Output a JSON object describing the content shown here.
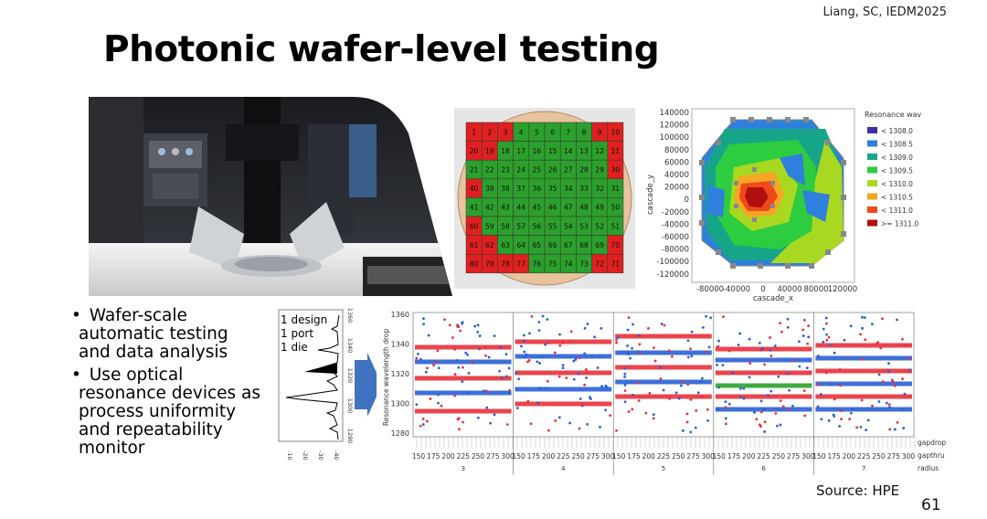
{
  "citation": "Liang, SC, IEDM2025",
  "title": "Photonic wafer-level testing",
  "photo": {
    "label": "system-photo"
  },
  "wafer_map": {
    "rows": [
      {
        "cells": [
          null,
          1,
          2,
          3,
          4,
          5,
          6,
          7,
          8,
          9,
          10,
          null
        ],
        "fail": [
          1,
          2,
          3,
          9,
          10
        ]
      },
      {
        "cells": [
          20,
          19,
          18,
          17,
          16,
          15,
          14,
          13,
          12,
          11
        ],
        "fail": [
          20,
          19,
          11
        ]
      },
      {
        "cells": [
          21,
          22,
          23,
          24,
          25,
          26,
          27,
          28,
          29,
          30
        ],
        "fail": [
          30
        ]
      },
      {
        "cells": [
          40,
          39,
          38,
          37,
          36,
          35,
          34,
          33,
          32,
          31
        ],
        "fail": [
          40
        ]
      },
      {
        "cells": [
          41,
          42,
          43,
          44,
          45,
          46,
          47,
          48,
          49,
          50
        ],
        "fail": []
      },
      {
        "cells": [
          60,
          59,
          58,
          57,
          56,
          55,
          54,
          53,
          52,
          51
        ],
        "fail": [
          60
        ]
      },
      {
        "cells": [
          61,
          62,
          63,
          64,
          65,
          66,
          67,
          68,
          69,
          70
        ],
        "fail": [
          61,
          62,
          70
        ]
      },
      {
        "cells": [
          80,
          79,
          78,
          77,
          76,
          75,
          74,
          73,
          72,
          71
        ],
        "fail": [
          80,
          79,
          78,
          77,
          72,
          71
        ]
      }
    ],
    "colors": {
      "pass": "#2ca02c",
      "fail": "#e02020",
      "wafer": "#e8c39e"
    }
  },
  "contour": {
    "legend_title": "Resonance wave",
    "legend": [
      {
        "label": "< 1308.0",
        "color": "#3a2fa8"
      },
      {
        "label": "< 1308.5",
        "color": "#2f7fdc"
      },
      {
        "label": "< 1309.0",
        "color": "#17a589"
      },
      {
        "label": "< 1309.5",
        "color": "#2ecc40"
      },
      {
        "label": "< 1310.0",
        "color": "#a8d820"
      },
      {
        "label": "< 1310.5",
        "color": "#f5a623"
      },
      {
        "label": "< 1311.0",
        "color": "#f04a1a"
      },
      {
        "label": ">= 1311.0",
        "color": "#b01010"
      }
    ],
    "y_label": "cascade_y",
    "x_label": "cascade_x",
    "y_ticks": [
      "140000",
      "120000",
      "100000",
      "80000",
      "60000",
      "40000",
      "20000",
      "0",
      "-20000",
      "-40000",
      "-60000",
      "-80000",
      "-100000",
      "-120000"
    ],
    "x_ticks": [
      "-80000",
      "-40000",
      "0",
      "40000",
      "80000",
      "120000"
    ]
  },
  "bullets": [
    {
      "mark": "•",
      "lines": [
        "  Wafer-scale",
        "automatic testing",
        "and data analysis"
      ]
    },
    {
      "mark": "•",
      "lines": [
        "  Use optical",
        "resonance devices as",
        "process uniformity",
        "and repeatability",
        "monitor"
      ]
    }
  ],
  "spectrum": {
    "labels": [
      "1 design",
      "1 port",
      "1 die"
    ],
    "right_ticks": [
      "1360",
      "1340",
      "1320",
      "1300",
      "1280"
    ],
    "bottom_ticks": [
      "-10",
      "-20",
      "-30",
      "-40"
    ]
  },
  "scatter": {
    "y_label": "Resonance wavelength drop",
    "y_ticks": [
      "1360",
      "1340",
      "1320",
      "1300",
      "1280"
    ],
    "x_row_labels": [
      "gapdrop",
      "gapthru",
      "radius"
    ],
    "radius_ticks": [
      "150",
      "175",
      "200",
      "225",
      "250",
      "275",
      "300"
    ],
    "groups": [
      "3",
      "4",
      "5",
      "6",
      "7"
    ],
    "colors": {
      "red": "#e8303a",
      "blue": "#2a5fd6",
      "green": "#2ca02c"
    }
  },
  "source": "Source: HPE",
  "page_number": "61"
}
